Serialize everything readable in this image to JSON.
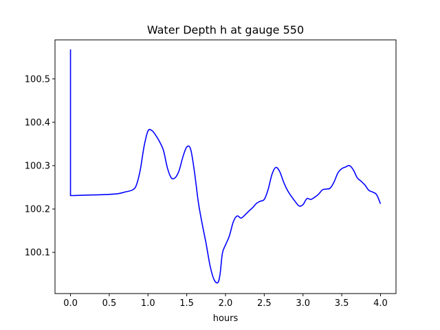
{
  "chart_data": {
    "type": "line",
    "title": "Water Depth h at gauge 550",
    "xlabel": "hours",
    "ylabel": "",
    "xlim": [
      -0.2,
      4.2
    ],
    "ylim": [
      100.005,
      100.59
    ],
    "x_ticks": [
      {
        "value": 0.0,
        "label": "0.0"
      },
      {
        "value": 0.5,
        "label": "0.5"
      },
      {
        "value": 1.0,
        "label": "1.0"
      },
      {
        "value": 1.5,
        "label": "1.5"
      },
      {
        "value": 2.0,
        "label": "2.0"
      },
      {
        "value": 2.5,
        "label": "2.5"
      },
      {
        "value": 3.0,
        "label": "3.0"
      },
      {
        "value": 3.5,
        "label": "3.5"
      },
      {
        "value": 4.0,
        "label": "4.0"
      }
    ],
    "y_ticks": [
      {
        "value": 100.1,
        "label": "100.1"
      },
      {
        "value": 100.2,
        "label": "100.2"
      },
      {
        "value": 100.3,
        "label": "100.3"
      },
      {
        "value": 100.4,
        "label": "100.4"
      },
      {
        "value": 100.5,
        "label": "100.5"
      }
    ],
    "grid": false,
    "line_color": "#0000ff",
    "series": [
      {
        "x": [
          0.0,
          0.0,
          0.002,
          0.05,
          0.2,
          0.4,
          0.6,
          0.7,
          0.8,
          0.85,
          0.9,
          0.95,
          1.0,
          1.05,
          1.1,
          1.15,
          1.2,
          1.25,
          1.3,
          1.35,
          1.4,
          1.45,
          1.5,
          1.55,
          1.6,
          1.65,
          1.7,
          1.75,
          1.8,
          1.85,
          1.9,
          1.93,
          1.96,
          2.0,
          2.05,
          2.1,
          2.15,
          2.2,
          2.25,
          2.3,
          2.35,
          2.4,
          2.45,
          2.5,
          2.55,
          2.6,
          2.65,
          2.7,
          2.75,
          2.8,
          2.85,
          2.9,
          2.95,
          3.0,
          3.05,
          3.1,
          3.15,
          3.2,
          3.25,
          3.3,
          3.35,
          3.4,
          3.45,
          3.5,
          3.55,
          3.6,
          3.65,
          3.7,
          3.75,
          3.8,
          3.85,
          3.9,
          3.95,
          4.0
        ],
        "y": [
          100.568,
          100.232,
          100.231,
          100.231,
          100.232,
          100.233,
          100.235,
          100.239,
          100.244,
          100.255,
          100.29,
          100.345,
          100.38,
          100.381,
          100.37,
          100.355,
          100.335,
          100.295,
          100.272,
          100.272,
          100.288,
          100.32,
          100.343,
          100.338,
          100.285,
          100.215,
          100.165,
          100.12,
          100.07,
          100.038,
          100.03,
          100.05,
          100.098,
          100.117,
          100.138,
          100.17,
          100.184,
          100.179,
          100.186,
          100.195,
          100.203,
          100.213,
          100.218,
          100.222,
          100.245,
          100.28,
          100.296,
          100.286,
          100.262,
          100.243,
          100.229,
          100.217,
          100.207,
          100.21,
          100.224,
          100.222,
          100.227,
          100.234,
          100.244,
          100.246,
          100.248,
          100.262,
          100.283,
          100.293,
          100.297,
          100.3,
          100.29,
          100.272,
          100.264,
          100.255,
          100.243,
          100.239,
          100.233,
          100.212
        ]
      }
    ]
  }
}
